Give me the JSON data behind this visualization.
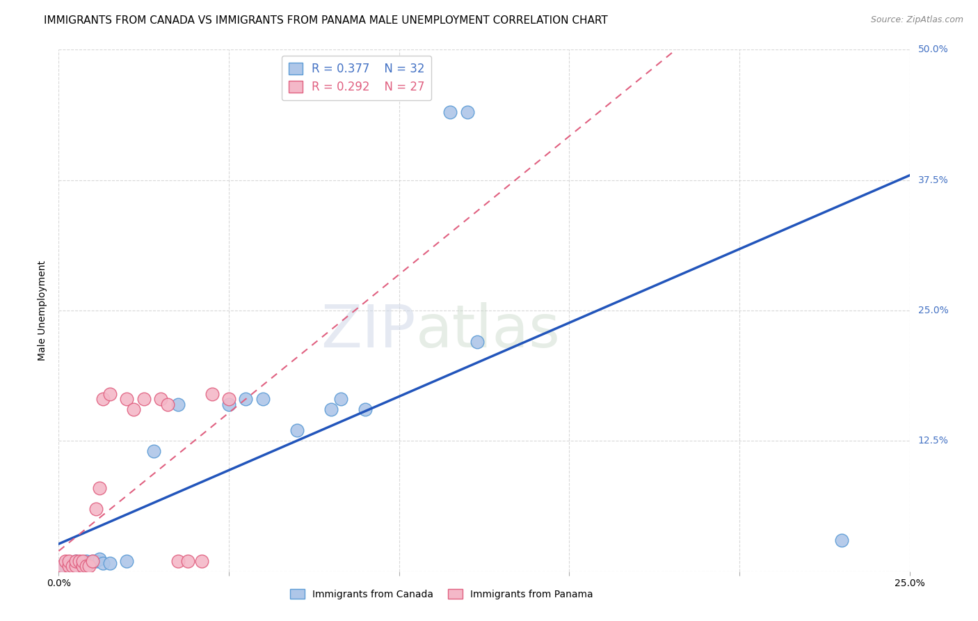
{
  "title": "IMMIGRANTS FROM CANADA VS IMMIGRANTS FROM PANAMA MALE UNEMPLOYMENT CORRELATION CHART",
  "source": "Source: ZipAtlas.com",
  "ylabel": "Male Unemployment",
  "canada_color": "#aec6e8",
  "canada_edge_color": "#5b9bd5",
  "panama_color": "#f4b8c8",
  "panama_edge_color": "#e06080",
  "canada_R": 0.377,
  "canada_N": 32,
  "panama_R": 0.292,
  "panama_N": 27,
  "xlim": [
    0.0,
    0.25
  ],
  "ylim": [
    0.0,
    0.5
  ],
  "xticks": [
    0.0,
    0.05,
    0.1,
    0.15,
    0.2,
    0.25
  ],
  "yticks": [
    0.0,
    0.125,
    0.25,
    0.375,
    0.5
  ],
  "xticklabels": [
    "0.0%",
    "",
    "",
    "",
    "",
    "25.0%"
  ],
  "yticklabels_right": [
    "",
    "12.5%",
    "25.0%",
    "37.5%",
    "50.0%"
  ],
  "canada_x": [
    0.001,
    0.002,
    0.002,
    0.003,
    0.003,
    0.004,
    0.005,
    0.005,
    0.006,
    0.007,
    0.007,
    0.008,
    0.009,
    0.01,
    0.011,
    0.012,
    0.013,
    0.015,
    0.02,
    0.028,
    0.035,
    0.05,
    0.055,
    0.06,
    0.07,
    0.08,
    0.083,
    0.09,
    0.115,
    0.12,
    0.123,
    0.23
  ],
  "canada_y": [
    0.005,
    0.005,
    0.007,
    0.005,
    0.008,
    0.005,
    0.005,
    0.01,
    0.008,
    0.005,
    0.008,
    0.01,
    0.008,
    0.01,
    0.01,
    0.012,
    0.008,
    0.008,
    0.01,
    0.115,
    0.16,
    0.16,
    0.165,
    0.165,
    0.135,
    0.155,
    0.165,
    0.155,
    0.44,
    0.44,
    0.22,
    0.03
  ],
  "panama_x": [
    0.001,
    0.002,
    0.003,
    0.003,
    0.004,
    0.005,
    0.005,
    0.006,
    0.007,
    0.007,
    0.008,
    0.009,
    0.01,
    0.011,
    0.012,
    0.013,
    0.015,
    0.02,
    0.022,
    0.025,
    0.03,
    0.032,
    0.035,
    0.038,
    0.042,
    0.045,
    0.05
  ],
  "panama_y": [
    0.005,
    0.01,
    0.005,
    0.01,
    0.005,
    0.005,
    0.01,
    0.01,
    0.005,
    0.01,
    0.005,
    0.005,
    0.01,
    0.06,
    0.08,
    0.165,
    0.17,
    0.165,
    0.155,
    0.165,
    0.165,
    0.16,
    0.01,
    0.01,
    0.01,
    0.17,
    0.165
  ],
  "background_color": "#ffffff",
  "grid_color": "#d8d8d8",
  "title_fontsize": 11,
  "axis_label_fontsize": 10,
  "tick_fontsize": 10,
  "legend_fontsize": 12,
  "source_fontsize": 9
}
